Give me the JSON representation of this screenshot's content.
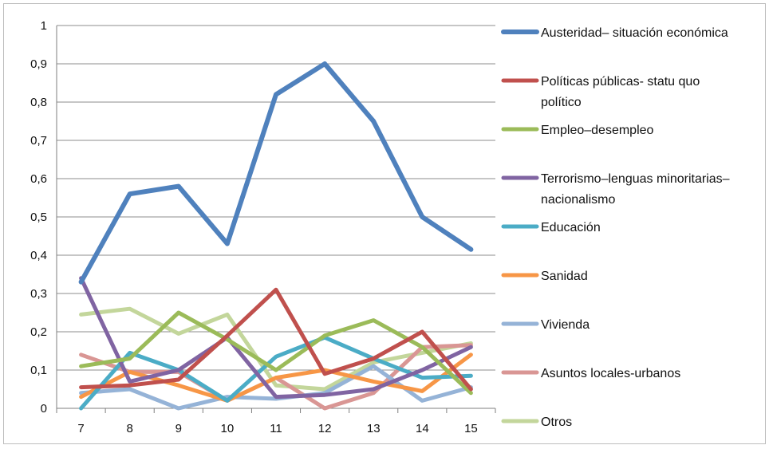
{
  "chart_data": {
    "type": "line",
    "title": "",
    "xlabel": "",
    "ylabel": "",
    "x": [
      7,
      8,
      9,
      10,
      11,
      12,
      13,
      14,
      15
    ],
    "ylim": [
      0,
      1
    ],
    "y_ticks": [
      "0",
      "0,1",
      "0,2",
      "0,3",
      "0,4",
      "0,5",
      "0,6",
      "0,7",
      "0,8",
      "0,9",
      "1"
    ],
    "y_tick_values": [
      0,
      0.1,
      0.2,
      0.3,
      0.4,
      0.5,
      0.6,
      0.7,
      0.8,
      0.9,
      1
    ],
    "x_ticks": [
      "7",
      "8",
      "9",
      "10",
      "11",
      "12",
      "13",
      "14",
      "15"
    ],
    "grid": "horizontal",
    "legend_position": "right",
    "series": [
      {
        "name": "Austeridad– situación económica",
        "name_lines": [
          "Austeridad– situación económica"
        ],
        "color": "#4F81BD",
        "width": 6,
        "values": [
          0.33,
          0.56,
          0.58,
          0.43,
          0.82,
          0.9,
          0.75,
          0.5,
          0.415
        ]
      },
      {
        "name": "Políticas públicas- statu quo político",
        "name_lines": [
          "Políticas públicas- statu quo",
          "político"
        ],
        "color": "#C0504D",
        "width": 5,
        "values": [
          0.055,
          0.06,
          0.075,
          0.19,
          0.31,
          0.09,
          0.13,
          0.2,
          0.05
        ]
      },
      {
        "name": "Empleo–desempleo",
        "name_lines": [
          "Empleo–desempleo"
        ],
        "color": "#9BBB59",
        "width": 5,
        "values": [
          0.11,
          0.13,
          0.25,
          0.18,
          0.1,
          0.19,
          0.23,
          0.16,
          0.04
        ]
      },
      {
        "name": "Terrorismo–lenguas minoritarias–nacionalismo",
        "name_lines": [
          "Terrorismo–lenguas minoritarias–",
          "nacionalismo"
        ],
        "color": "#8064A2",
        "width": 5,
        "values": [
          0.34,
          0.07,
          0.1,
          0.185,
          0.03,
          0.035,
          0.05,
          0.1,
          0.16
        ]
      },
      {
        "name": "Educación",
        "name_lines": [
          "Educación"
        ],
        "color": "#4BACC6",
        "width": 5,
        "values": [
          0.0,
          0.145,
          0.1,
          0.02,
          0.135,
          0.185,
          0.13,
          0.08,
          0.085
        ]
      },
      {
        "name": "Sanidad",
        "name_lines": [
          "Sanidad"
        ],
        "color": "#F79646",
        "width": 5,
        "values": [
          0.03,
          0.095,
          0.06,
          0.02,
          0.08,
          0.1,
          0.07,
          0.045,
          0.14
        ]
      },
      {
        "name": "Vivienda",
        "name_lines": [
          "Vivienda"
        ],
        "color": "#95B3D7",
        "width": 5,
        "values": [
          0.04,
          0.05,
          0.0,
          0.03,
          0.025,
          0.04,
          0.11,
          0.02,
          0.055
        ]
      },
      {
        "name": "Asuntos locales-urbanos",
        "name_lines": [
          "Asuntos locales-urbanos"
        ],
        "color": "#D99694",
        "width": 5,
        "values": [
          0.14,
          0.095,
          0.095,
          0.02,
          0.08,
          0.0,
          0.04,
          0.16,
          0.165
        ]
      },
      {
        "name": "Otros",
        "name_lines": [
          "Otros"
        ],
        "color": "#C3D69B",
        "width": 5,
        "values": [
          0.245,
          0.26,
          0.195,
          0.245,
          0.06,
          0.05,
          0.12,
          0.145,
          0.17
        ]
      }
    ]
  }
}
